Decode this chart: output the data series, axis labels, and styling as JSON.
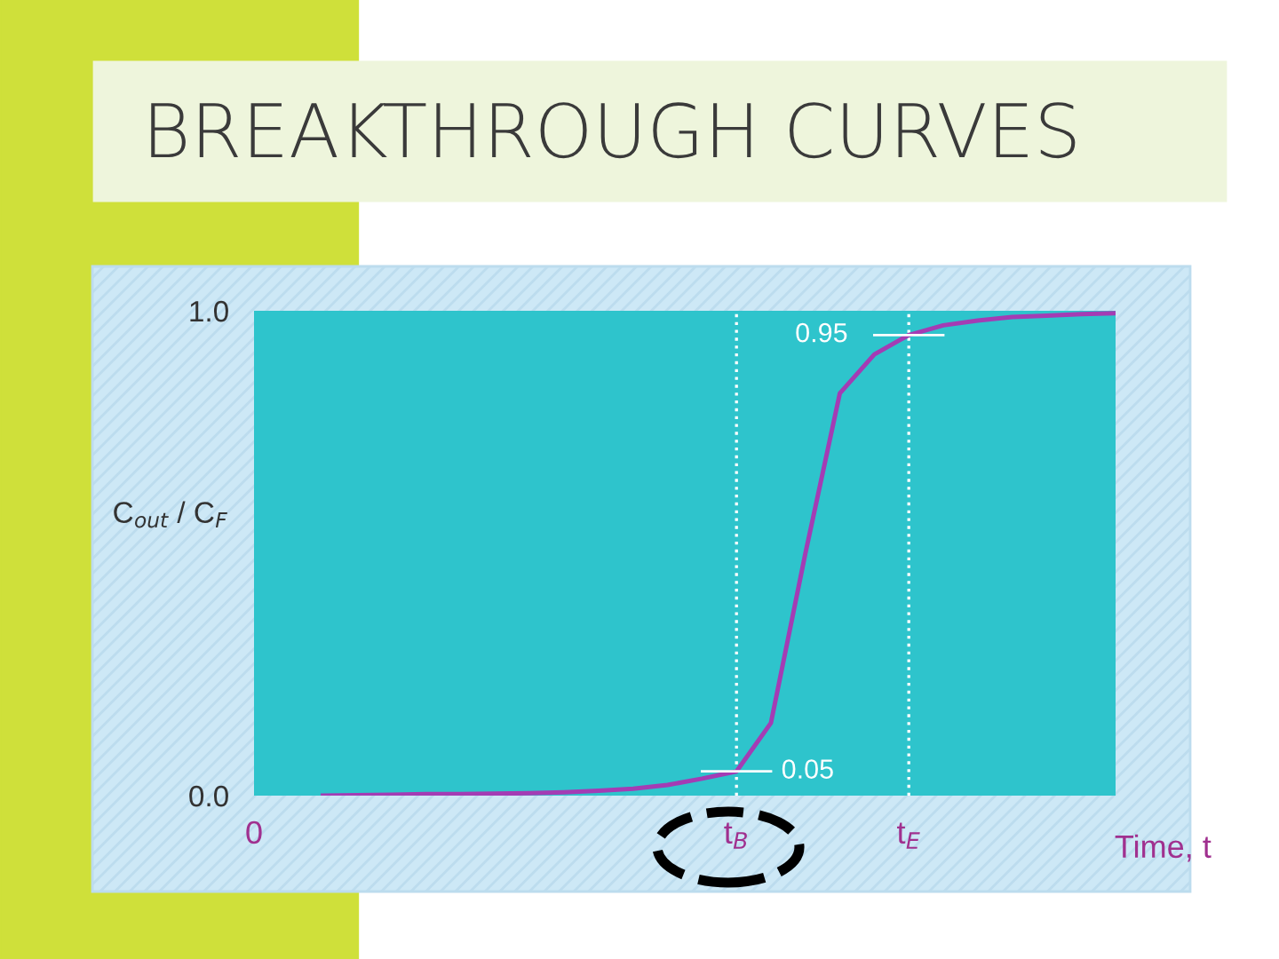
{
  "chart_data": {
    "type": "line",
    "title": "BREAKTHROUGH CURVES",
    "ylabel": "C$_{out}$ / C$_{F}$",
    "xlabel": "Time, t",
    "categories": [
      "0",
      null,
      null,
      null,
      null,
      null,
      null,
      null,
      null,
      null,
      null,
      null,
      null,
      null,
      "t$_{B}$",
      null,
      null,
      null,
      null,
      "t$_{E}$",
      null,
      null,
      null,
      null,
      null,
      null
    ],
    "series": [
      {
        "color": "#a43cb4",
        "values": [
          null,
          null,
          0.0,
          0.001,
          0.002,
          0.003,
          0.003,
          0.004,
          0.005,
          0.007,
          0.01,
          0.014,
          0.022,
          0.035,
          0.05,
          0.15,
          0.5,
          0.83,
          0.91,
          0.95,
          0.97,
          0.98,
          0.987,
          0.99,
          0.993,
          0.995
        ]
      }
    ],
    "ylim": [
      0,
      1
    ],
    "yticks": [
      {
        "value": 0,
        "label": "0.0"
      },
      {
        "value": 1,
        "label": "1.0"
      }
    ],
    "ref_lines": [
      {
        "axis": "x",
        "value": "t$_{B}$",
        "color": "#ffffff",
        "line_style": "dotted"
      },
      {
        "axis": "x",
        "value": "t$_{E}$",
        "color": "#ffffff",
        "line_style": "dotted"
      }
    ],
    "annotations": [
      {
        "text": "0.95",
        "x": "t$_{E}$",
        "y": 0.95
      },
      {
        "text": "0.05",
        "x": "t$_{B}$",
        "y": 0.05
      }
    ],
    "grid": false,
    "marker": "none",
    "line_style": "solid"
  }
}
